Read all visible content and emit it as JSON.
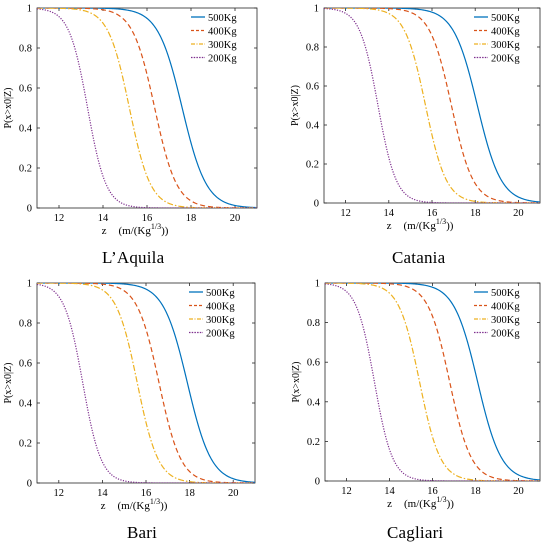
{
  "chart_data": [
    {
      "type": "line",
      "title": "L'Aquila",
      "caption": "L’Aquila",
      "xlabel_main": "z",
      "xlabel_unit": "(m/(Kg",
      "xlabel_sup": "1/3",
      "xlabel_close": "))",
      "ylabel": "P(x>x0|Z)",
      "xlim": [
        11,
        21
      ],
      "ylim": [
        0,
        1
      ],
      "xticks": [
        "12",
        "14",
        "16",
        "18",
        "20"
      ],
      "yticks": [
        "0",
        "0.2",
        "0.4",
        "0.6",
        "0.8",
        "1"
      ],
      "legend_position": "top-right",
      "series": [
        {
          "name": "500Kg",
          "color": "#0072BD",
          "dash": "solid",
          "median": 17.6,
          "spread": 0.55
        },
        {
          "name": "400Kg",
          "color": "#D95319",
          "dash": "dashed",
          "median": 16.35,
          "spread": 0.5
        },
        {
          "name": "300Kg",
          "color": "#EDB120",
          "dash": "dashdot",
          "median": 15.2,
          "spread": 0.48
        },
        {
          "name": "200Kg",
          "color": "#7E2F8E",
          "dash": "dotted",
          "median": 13.3,
          "spread": 0.42
        }
      ]
    },
    {
      "type": "line",
      "title": "Catania",
      "caption": "Catania",
      "xlabel_main": "z",
      "xlabel_unit": "(m/(Kg",
      "xlabel_sup": "1/3",
      "xlabel_close": "))",
      "ylabel": "P(x>x0|Z)",
      "xlim": [
        11,
        21
      ],
      "ylim": [
        0,
        1
      ],
      "xticks": [
        "12",
        "14",
        "16",
        "18",
        "20"
      ],
      "yticks": [
        "0",
        "0.2",
        "0.4",
        "0.6",
        "0.8",
        "1"
      ],
      "legend_position": "top-right",
      "series": [
        {
          "name": "500Kg",
          "color": "#0072BD",
          "dash": "solid",
          "median": 18.1,
          "spread": 0.55
        },
        {
          "name": "400Kg",
          "color": "#D95319",
          "dash": "dashed",
          "median": 16.9,
          "spread": 0.5
        },
        {
          "name": "300Kg",
          "color": "#EDB120",
          "dash": "dashdot",
          "median": 15.7,
          "spread": 0.48
        },
        {
          "name": "200Kg",
          "color": "#7E2F8E",
          "dash": "dotted",
          "median": 13.5,
          "spread": 0.42
        }
      ]
    },
    {
      "type": "line",
      "title": "Bari",
      "caption": "Bari",
      "xlabel_main": "z",
      "xlabel_unit": "(m/(Kg",
      "xlabel_sup": "1/3",
      "xlabel_close": "))",
      "ylabel": "P(x>x0|Z)",
      "xlim": [
        11,
        21
      ],
      "ylim": [
        0,
        1
      ],
      "xticks": [
        "12",
        "14",
        "16",
        "18",
        "20"
      ],
      "yticks": [
        "0",
        "0.2",
        "0.4",
        "0.6",
        "0.8",
        "1"
      ],
      "legend_position": "top-right",
      "series": [
        {
          "name": "500Kg",
          "color": "#0072BD",
          "dash": "solid",
          "median": 17.9,
          "spread": 0.55
        },
        {
          "name": "400Kg",
          "color": "#D95319",
          "dash": "dashed",
          "median": 16.6,
          "spread": 0.5
        },
        {
          "name": "300Kg",
          "color": "#EDB120",
          "dash": "dashdot",
          "median": 15.6,
          "spread": 0.48
        },
        {
          "name": "200Kg",
          "color": "#7E2F8E",
          "dash": "dotted",
          "median": 13.1,
          "spread": 0.42
        }
      ]
    },
    {
      "type": "line",
      "title": "Cagliari",
      "caption": "Cagliari",
      "xlabel_main": "z",
      "xlabel_unit": "(m/(Kg",
      "xlabel_sup": "1/3",
      "xlabel_close": "))",
      "ylabel": "P(x>x0|Z)",
      "xlim": [
        11,
        21
      ],
      "ylim": [
        0,
        1
      ],
      "xticks": [
        "12",
        "14",
        "16",
        "18",
        "20"
      ],
      "yticks": [
        "0",
        "0.2",
        "0.4",
        "0.6",
        "0.8",
        "1"
      ],
      "legend_position": "top-right",
      "series": [
        {
          "name": "500Kg",
          "color": "#0072BD",
          "dash": "solid",
          "median": 18.1,
          "spread": 0.55
        },
        {
          "name": "400Kg",
          "color": "#D95319",
          "dash": "dashed",
          "median": 16.8,
          "spread": 0.5
        },
        {
          "name": "300Kg",
          "color": "#EDB120",
          "dash": "dashdot",
          "median": 15.4,
          "spread": 0.48
        },
        {
          "name": "200Kg",
          "color": "#7E2F8E",
          "dash": "dotted",
          "median": 13.3,
          "spread": 0.42
        }
      ]
    }
  ]
}
